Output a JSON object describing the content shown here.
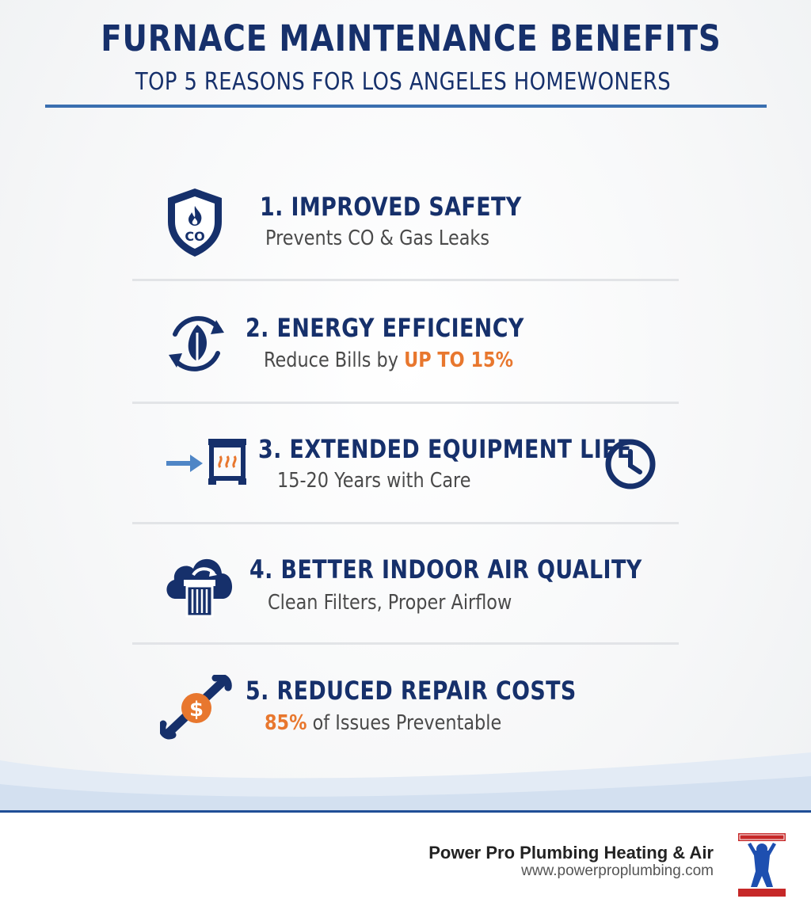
{
  "header": {
    "title": "FURNACE MAINTENANCE BENEFITS",
    "subtitle": "TOP 5 REASONS FOR LOS ANGELES HOMEWONERS"
  },
  "items": [
    {
      "title": "1. IMPROVED SAFETY",
      "sub": "Prevents CO & Gas Leaks",
      "icon": "shield-co-icon",
      "icon_text": "CO"
    },
    {
      "title": "2. ENERGY EFFICIENCY",
      "sub_pre": "Reduce Bills by ",
      "sub_highlight": "UP TO 15%",
      "icon": "leaf-cycle-icon"
    },
    {
      "title": "3. EXTENDED EQUIPMENT LIFE",
      "sub": "15-20 Years with Care",
      "icon": "furnace-icon",
      "icon_right": "clock-icon"
    },
    {
      "title": "4. BETTER INDOOR AIR QUALITY",
      "sub": "Clean Filters, Proper Airflow",
      "icon": "cloud-filter-icon"
    },
    {
      "title": "5. REDUCED REPAIR COSTS",
      "sub_highlight": "85%",
      "sub_post": " of Issues Preventable",
      "icon": "wrench-dollar-icon",
      "icon_text": "$"
    }
  ],
  "footer": {
    "company": "Power Pro Plumbing Heating & Air",
    "url": "www.powerproplumbing.com"
  },
  "colors": {
    "navy": "#16306b",
    "accent": "#e8772e",
    "rule": "#3a6fb0",
    "text": "#4a4a4a"
  }
}
